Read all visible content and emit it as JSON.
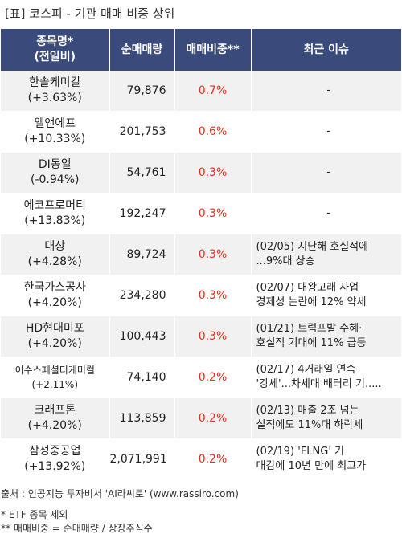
{
  "title": "[표] 코스피 - 기관 매매 비중 상위",
  "headers": {
    "name": "종목명*",
    "name_sub": "(전일비)",
    "volume": "순매매량",
    "ratio": "매매비중**",
    "issue": "최근 이슈"
  },
  "rows": [
    {
      "name": "한솔케미칼",
      "change": "(+3.63%)",
      "volume": "79,876",
      "ratio": "0.7%",
      "issue": [
        "-"
      ]
    },
    {
      "name": "엘앤에프",
      "change": "(+10.33%)",
      "volume": "201,753",
      "ratio": "0.6%",
      "issue": [
        "-"
      ]
    },
    {
      "name": "DI동일",
      "change": "(-0.94%)",
      "volume": "54,761",
      "ratio": "0.3%",
      "issue": [
        "-"
      ]
    },
    {
      "name": "에코프로머티",
      "change": "(+13.83%)",
      "volume": "192,247",
      "ratio": "0.3%",
      "issue": [
        "-"
      ]
    },
    {
      "name": "대상",
      "change": "(+4.28%)",
      "volume": "89,724",
      "ratio": "0.3%",
      "issue": [
        "(02/05) 지난해 호실적에",
        "...9%대 상승"
      ]
    },
    {
      "name": "한국가스공사",
      "change": "(+4.20%)",
      "volume": "234,280",
      "ratio": "0.3%",
      "issue": [
        "(02/07) 대왕고래 사업",
        "경제성 논란에 12% 약세"
      ]
    },
    {
      "name": "HD현대미포",
      "change": "(+4.20%)",
      "volume": "100,443",
      "ratio": "0.3%",
      "issue": [
        "(01/21) 트럼프발 수혜·",
        "호실적 기대에 11% 급등"
      ]
    },
    {
      "name": "이수스페셜티케미컬",
      "change": "(+2.11%)",
      "volume": "74,140",
      "ratio": "0.2%",
      "issue": [
        "(02/17) 4거래일 연속",
        "'강세'...차세대 배터리 기....."
      ],
      "small": true
    },
    {
      "name": "크래프톤",
      "change": "(+4.20%)",
      "volume": "113,859",
      "ratio": "0.2%",
      "issue": [
        "(02/13) 매출 2조 넘는",
        "실적에도 11%대 하락세"
      ]
    },
    {
      "name": "삼성중공업",
      "change": "(+13.92%)",
      "volume": "2,071,991",
      "ratio": "0.2%",
      "issue": [
        "(02/19) 'FLNG' 기",
        "대감에 10년 만에 최고가"
      ]
    }
  ],
  "footer": {
    "source": "출처 : 인공지능 투자비서 'AI라씨로' (www.rassiro.com)",
    "note1": "* ETF 종목 제외",
    "note2": "** 매매비중 = 순매매량 / 상장주식수"
  },
  "colors": {
    "header_bg": "#3a4a7a",
    "ratio_text": "#e0301e",
    "stripe": "#f1f1f1"
  }
}
